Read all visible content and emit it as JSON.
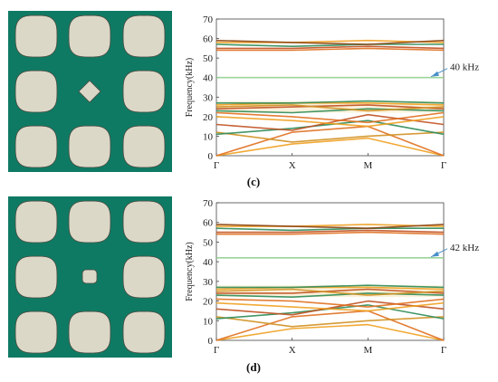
{
  "figure": {
    "panels": [
      {
        "caption": "(c)",
        "inclusion_shape": "diamond",
        "annotation": "40 kHz",
        "band_color": "#90d090"
      },
      {
        "caption": "(d)",
        "inclusion_shape": "rounded-square",
        "annotation": "42 kHz",
        "band_color": "#90d090"
      }
    ],
    "colors": {
      "matrix": "#0f7a63",
      "scatterer": "#dcd8c8",
      "arrow": "#4a90c8"
    }
  },
  "chart_data": [
    {
      "type": "line",
      "title": "",
      "xlabel": "",
      "ylabel": "Frequency(kHz)",
      "x_ticks": [
        "Γ",
        "X",
        "M",
        "Γ"
      ],
      "ylim": [
        0,
        70
      ],
      "y_ticks": [
        0,
        10,
        20,
        30,
        40,
        50,
        60,
        70
      ],
      "grid": false,
      "highlighted_band_kHz": 40,
      "annotation": "40 kHz",
      "series": [
        {
          "color": "#f0a020",
          "values": [
            0,
            6,
            9,
            0
          ]
        },
        {
          "color": "#e07020",
          "values": [
            0,
            12,
            15,
            0
          ]
        },
        {
          "color": "#d09020",
          "values": [
            12,
            7,
            10,
            12
          ]
        },
        {
          "color": "#2e8b57",
          "values": [
            11,
            14,
            18,
            11
          ]
        },
        {
          "color": "#c05020",
          "values": [
            16,
            13,
            21,
            16
          ]
        },
        {
          "color": "#f0a020",
          "values": [
            20,
            18,
            15,
            20
          ]
        },
        {
          "color": "#e07020",
          "values": [
            22,
            20,
            17,
            22
          ]
        },
        {
          "color": "#2e8b57",
          "values": [
            23,
            22,
            24,
            23
          ]
        },
        {
          "color": "#c05020",
          "values": [
            24,
            25,
            26,
            24
          ]
        },
        {
          "color": "#d09020",
          "values": [
            25,
            26,
            23,
            25
          ]
        },
        {
          "color": "#f0a020",
          "values": [
            26,
            27,
            27,
            26
          ]
        },
        {
          "color": "#2e8b57",
          "values": [
            27,
            27,
            28,
            27
          ]
        },
        {
          "color": "#90d090",
          "values": [
            40,
            40,
            40,
            40
          ]
        },
        {
          "color": "#e07020",
          "values": [
            54,
            54,
            55,
            54
          ]
        },
        {
          "color": "#c05020",
          "values": [
            55,
            55,
            56,
            55
          ]
        },
        {
          "color": "#2e8b57",
          "values": [
            57,
            56,
            57,
            57
          ]
        },
        {
          "color": "#f0a020",
          "values": [
            58,
            58,
            59,
            58
          ]
        },
        {
          "color": "#8b4513",
          "values": [
            59,
            58,
            57,
            59
          ]
        }
      ]
    },
    {
      "type": "line",
      "title": "",
      "xlabel": "",
      "ylabel": "Frequency(kHz)",
      "x_ticks": [
        "Γ",
        "X",
        "M",
        "Γ"
      ],
      "ylim": [
        0,
        70
      ],
      "y_ticks": [
        0,
        10,
        20,
        30,
        40,
        50,
        60,
        70
      ],
      "grid": false,
      "highlighted_band_kHz": 42,
      "annotation": "42 kHz",
      "series": [
        {
          "color": "#f0a020",
          "values": [
            0,
            6,
            8,
            0
          ]
        },
        {
          "color": "#e07020",
          "values": [
            0,
            12,
            15,
            0
          ]
        },
        {
          "color": "#d09020",
          "values": [
            12,
            7,
            10,
            12
          ]
        },
        {
          "color": "#2e8b57",
          "values": [
            11,
            14,
            18,
            11
          ]
        },
        {
          "color": "#c05020",
          "values": [
            16,
            13,
            20,
            16
          ]
        },
        {
          "color": "#f0a020",
          "values": [
            19,
            17,
            15,
            19
          ]
        },
        {
          "color": "#e07020",
          "values": [
            21,
            20,
            17,
            21
          ]
        },
        {
          "color": "#2e8b57",
          "values": [
            23,
            22,
            24,
            23
          ]
        },
        {
          "color": "#c05020",
          "values": [
            24,
            24,
            26,
            24
          ]
        },
        {
          "color": "#d09020",
          "values": [
            25,
            26,
            23,
            25
          ]
        },
        {
          "color": "#f0a020",
          "values": [
            26,
            27,
            27,
            26
          ]
        },
        {
          "color": "#2e8b57",
          "values": [
            27,
            27,
            28,
            27
          ]
        },
        {
          "color": "#90d090",
          "values": [
            42,
            42,
            42,
            42
          ]
        },
        {
          "color": "#e07020",
          "values": [
            54,
            54,
            55,
            54
          ]
        },
        {
          "color": "#c05020",
          "values": [
            55,
            55,
            56,
            55
          ]
        },
        {
          "color": "#2e8b57",
          "values": [
            57,
            56,
            57,
            57
          ]
        },
        {
          "color": "#f0a020",
          "values": [
            58,
            58,
            59,
            58
          ]
        },
        {
          "color": "#8b4513",
          "values": [
            59,
            58,
            57,
            59
          ]
        }
      ]
    }
  ]
}
